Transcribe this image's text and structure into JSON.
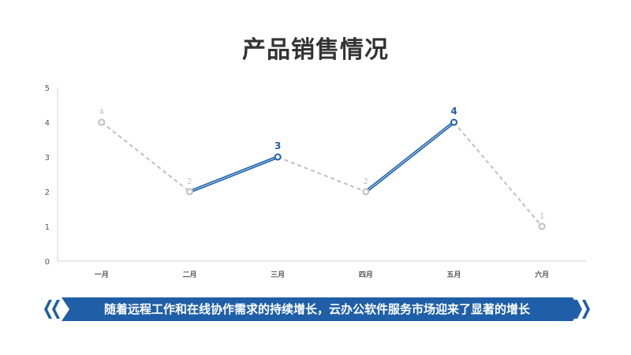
{
  "title": "产品销售情况",
  "banner_text": "随着远程工作和在线协作需求的持续增长，云办公软件服务市场迎来了显著的增长",
  "colors": {
    "accent": "#1f5fa8",
    "muted": "#bfbfbf",
    "axis": "#d0d0d0"
  },
  "chart_data": {
    "type": "line",
    "categories": [
      "一月",
      "二月",
      "三月",
      "四月",
      "五月",
      "六月"
    ],
    "values": [
      4,
      2,
      3,
      2,
      4,
      1
    ],
    "highlight_segments": [
      [
        1,
        2
      ],
      [
        3,
        4
      ]
    ],
    "highlight_labels": [
      2,
      4
    ],
    "ylim": [
      0,
      5
    ],
    "yticks": [
      0,
      1,
      2,
      3,
      4,
      5
    ],
    "grid": false
  }
}
